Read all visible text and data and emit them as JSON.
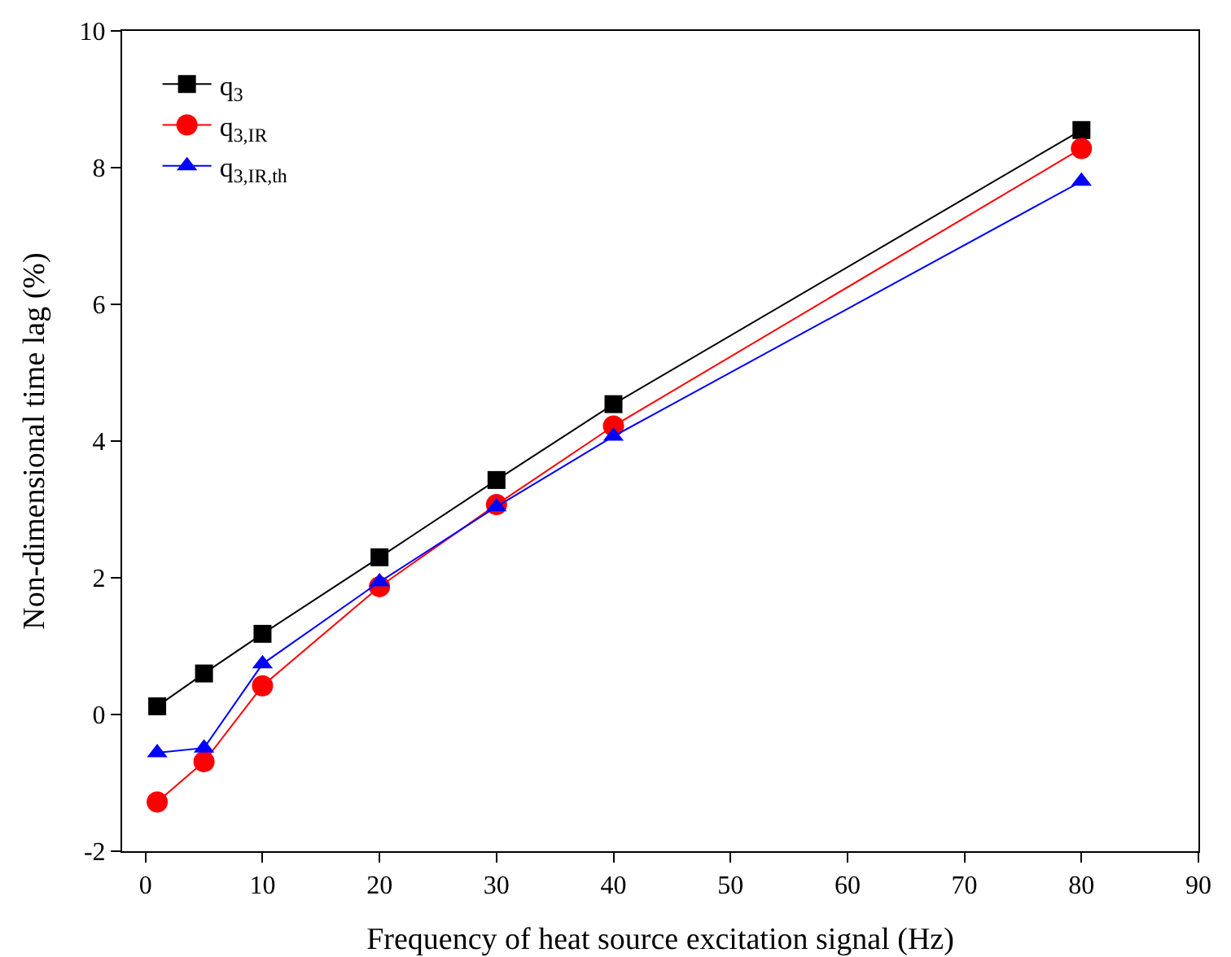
{
  "chart_data": {
    "type": "line",
    "xlabel": "Frequency of heat source excitation signal (Hz)",
    "ylabel": "Non-dimensional time lag (%)",
    "x": [
      1,
      5,
      10,
      20,
      30,
      40,
      80
    ],
    "series": [
      {
        "name": "q$_{3}$",
        "color": "#000000",
        "marker": "square",
        "values": [
          0.12,
          0.6,
          1.18,
          2.3,
          3.43,
          4.54,
          8.55
        ]
      },
      {
        "name": "q$_{3,IR}$",
        "color": "#ff0000",
        "marker": "circle",
        "values": [
          -1.28,
          -0.69,
          0.42,
          1.87,
          3.07,
          4.22,
          8.28
        ]
      },
      {
        "name": "q$_{3,IR,th}$",
        "color": "#0000ff",
        "marker": "triangle",
        "values": [
          -0.56,
          -0.49,
          0.74,
          1.94,
          3.04,
          4.07,
          7.8
        ]
      }
    ],
    "xlim": [
      -2,
      90
    ],
    "xticks": [
      0,
      10,
      20,
      30,
      40,
      50,
      60,
      70,
      80,
      90
    ],
    "ylim": [
      -2,
      10
    ],
    "yticks": [
      -2,
      0,
      2,
      4,
      6,
      8,
      10
    ],
    "grid": false,
    "legend": "top left",
    "line_style": "solid"
  }
}
